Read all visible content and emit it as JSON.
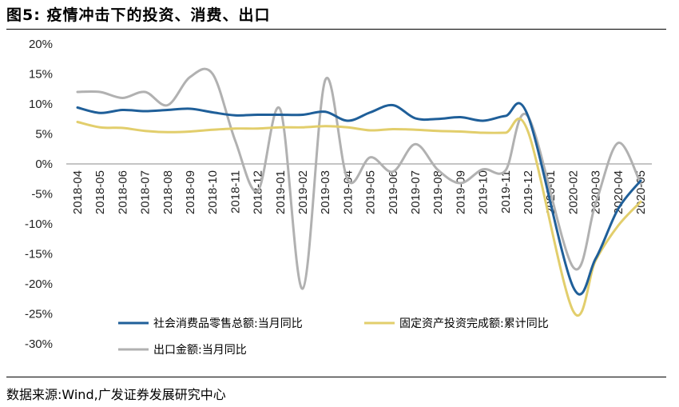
{
  "header": {
    "figure_label": "图5:",
    "title_text": "疫情冲击下的投资、消费、出口"
  },
  "footer": {
    "source": "数据来源:Wind,广发证券发展研究中心"
  },
  "chart_data": {
    "type": "line",
    "title": "疫情冲击下的投资、消费、出口",
    "categories": [
      "2018-04",
      "2018-05",
      "2018-06",
      "2018-07",
      "2018-08",
      "2018-09",
      "2018-10",
      "2018-11",
      "2018-12",
      "2019-01",
      "2019-02",
      "2019-03",
      "2019-04",
      "2019-05",
      "2019-06",
      "2019-07",
      "2019-08",
      "2019-09",
      "2019-10",
      "2019-11",
      "2019-12",
      "2020-01",
      "2020-02",
      "2020-03",
      "2020-04",
      "2020-05"
    ],
    "y_ticks": [
      "20%",
      "15%",
      "10%",
      "5%",
      "0%",
      "-5%",
      "-10%",
      "-15%",
      "-20%",
      "-25%",
      "-30%"
    ],
    "ylim": [
      -30,
      20
    ],
    "ystep": 5,
    "series": [
      {
        "name": "社会消费品零售总额:当月同比",
        "color": "#1f5f99",
        "values": [
          9.4,
          8.5,
          9.0,
          8.8,
          9.0,
          9.2,
          8.6,
          8.1,
          8.2,
          8.2,
          8.2,
          8.7,
          7.2,
          8.6,
          9.8,
          7.6,
          7.5,
          7.8,
          7.2,
          8.0,
          8.0,
          null,
          -20.5,
          -15.8,
          -7.5,
          -2.8
        ]
      },
      {
        "name": "固定资产投资完成额:累计同比",
        "color": "#e2ce6c",
        "values": [
          7.0,
          6.1,
          6.0,
          5.5,
          5.3,
          5.4,
          5.7,
          5.9,
          5.9,
          6.1,
          6.1,
          6.3,
          6.1,
          5.6,
          5.8,
          5.7,
          5.5,
          5.4,
          5.2,
          5.2,
          5.4,
          null,
          -24.5,
          -16.1,
          -10.3,
          -6.3
        ]
      },
      {
        "name": "出口金额:当月同比",
        "color": "#b1b1b1",
        "values": [
          12.0,
          12.0,
          11.0,
          12.0,
          9.8,
          14.5,
          15.0,
          3.9,
          -4.5,
          9.1,
          -20.8,
          14.0,
          -2.7,
          1.1,
          -1.3,
          3.3,
          -1.0,
          -3.2,
          -0.9,
          -1.1,
          7.9,
          null,
          -17.2,
          -6.6,
          3.5,
          -3.3
        ]
      }
    ]
  }
}
